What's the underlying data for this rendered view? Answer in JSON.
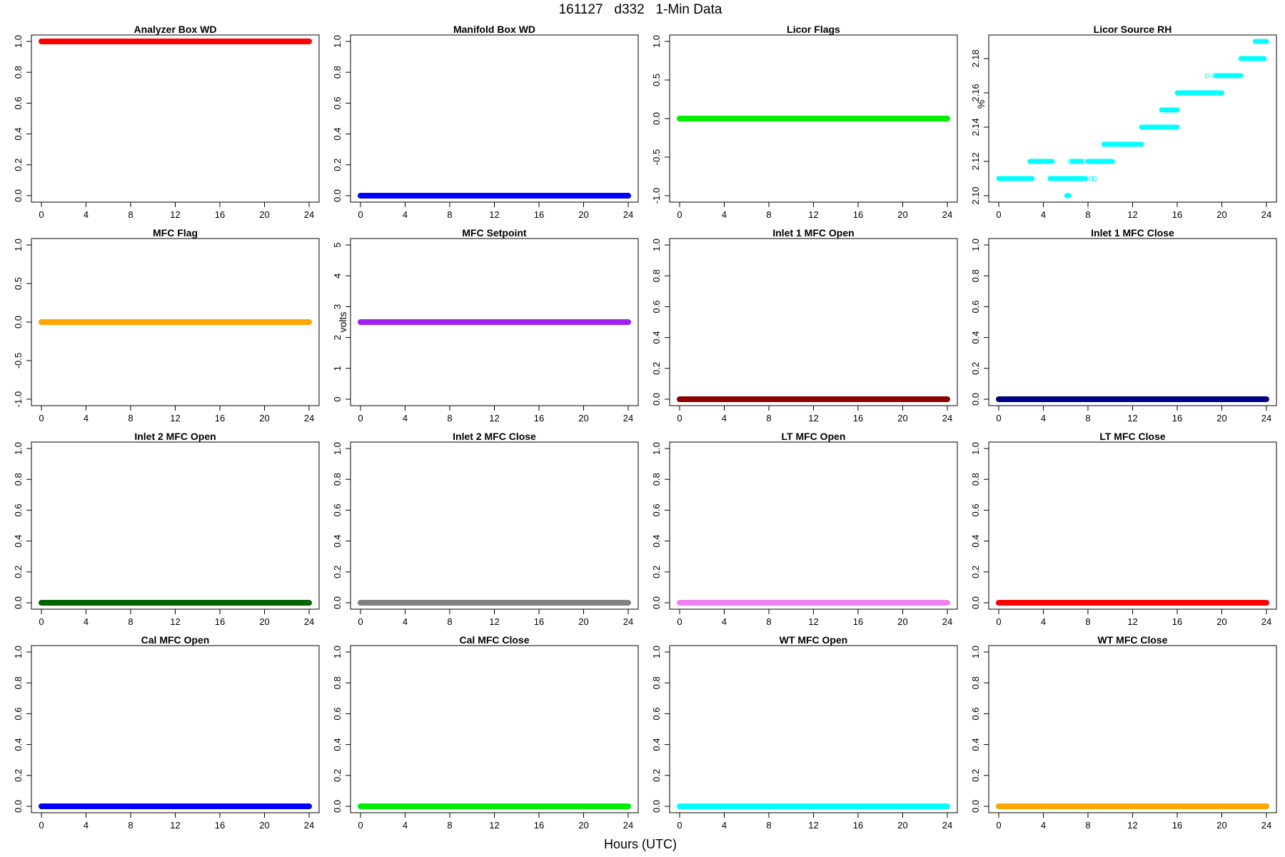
{
  "title": "161127   d332   1-Min Data",
  "xlabel": "Hours (UTC)",
  "chart_data": [
    {
      "type": "scatter",
      "title": "Analyzer Box WD",
      "ylabel": "",
      "color": "#ff0000",
      "xlim": [
        0,
        24
      ],
      "ylim": [
        0,
        1
      ],
      "yticks": [
        "0.0",
        "0.2",
        "0.4",
        "0.6",
        "0.8",
        "1.0"
      ],
      "xticks": [
        "0",
        "4",
        "8",
        "12",
        "16",
        "20",
        "24"
      ],
      "segments": [
        {
          "x": [
            0,
            24
          ],
          "y": 1.0
        }
      ],
      "points": []
    },
    {
      "type": "scatter",
      "title": "Manifold Box WD",
      "ylabel": "",
      "color": "#0000ff",
      "xlim": [
        0,
        24
      ],
      "ylim": [
        0,
        1
      ],
      "yticks": [
        "0.0",
        "0.2",
        "0.4",
        "0.6",
        "0.8",
        "1.0"
      ],
      "xticks": [
        "0",
        "4",
        "8",
        "12",
        "16",
        "20",
        "24"
      ],
      "segments": [
        {
          "x": [
            0,
            24
          ],
          "y": 0.0
        }
      ],
      "points": []
    },
    {
      "type": "scatter",
      "title": "Licor Flags",
      "ylabel": "",
      "color": "#00ee00",
      "xlim": [
        0,
        24
      ],
      "ylim": [
        -1,
        1
      ],
      "yticks": [
        "-1.0",
        "-0.5",
        "0.0",
        "0.5",
        "1.0"
      ],
      "xticks": [
        "0",
        "4",
        "8",
        "12",
        "16",
        "20",
        "24"
      ],
      "segments": [
        {
          "x": [
            0,
            24
          ],
          "y": 0.0
        }
      ],
      "points": []
    },
    {
      "type": "scatter",
      "title": "Licor Source RH",
      "ylabel": "%",
      "color": "#00ffff",
      "xlim": [
        0,
        24
      ],
      "ylim": [
        2.1,
        2.19
      ],
      "yticks": [
        "2.10",
        "2.12",
        "2.14",
        "2.16",
        "2.18"
      ],
      "xticks": [
        "0",
        "4",
        "8",
        "12",
        "16",
        "20",
        "24"
      ],
      "segments": [
        {
          "x": [
            0,
            3.0
          ],
          "y": 2.11
        },
        {
          "x": [
            2.8,
            4.8
          ],
          "y": 2.12
        },
        {
          "x": [
            4.6,
            7.8
          ],
          "y": 2.11
        },
        {
          "x": [
            6.1,
            6.3
          ],
          "y": 2.1
        },
        {
          "x": [
            6.6,
            7.4
          ],
          "y": 2.12
        },
        {
          "x": [
            8.0,
            10.2
          ],
          "y": 2.12
        },
        {
          "x": [
            9.5,
            12.8
          ],
          "y": 2.13
        },
        {
          "x": [
            12.8,
            16.0
          ],
          "y": 2.14
        },
        {
          "x": [
            14.6,
            16.0
          ],
          "y": 2.15
        },
        {
          "x": [
            16.0,
            20.0
          ],
          "y": 2.16
        },
        {
          "x": [
            19.5,
            21.7
          ],
          "y": 2.17
        },
        {
          "x": [
            21.7,
            23.8
          ],
          "y": 2.18
        },
        {
          "x": [
            23.0,
            24.0
          ],
          "y": 2.19
        }
      ],
      "points": [
        {
          "x": 6.4,
          "y": 2.12
        },
        {
          "x": 7.6,
          "y": 2.12
        },
        {
          "x": 8.3,
          "y": 2.11
        },
        {
          "x": 8.6,
          "y": 2.11
        },
        {
          "x": 9.4,
          "y": 2.13
        },
        {
          "x": 18.7,
          "y": 2.17
        },
        {
          "x": 19.3,
          "y": 2.17
        }
      ]
    },
    {
      "type": "scatter",
      "title": "MFC Flag",
      "ylabel": "",
      "color": "#ffa500",
      "xlim": [
        0,
        24
      ],
      "ylim": [
        -1,
        1
      ],
      "yticks": [
        "-1.0",
        "-0.5",
        "0.0",
        "0.5",
        "1.0"
      ],
      "xticks": [
        "0",
        "4",
        "8",
        "12",
        "16",
        "20",
        "24"
      ],
      "segments": [
        {
          "x": [
            0,
            24
          ],
          "y": 0.0
        }
      ],
      "points": []
    },
    {
      "type": "scatter",
      "title": "MFC Setpoint",
      "ylabel": "volts",
      "color": "#a020f0",
      "xlim": [
        0,
        24
      ],
      "ylim": [
        0,
        5
      ],
      "yticks": [
        "0",
        "1",
        "2",
        "3",
        "4",
        "5"
      ],
      "xticks": [
        "0",
        "4",
        "8",
        "12",
        "16",
        "20",
        "24"
      ],
      "segments": [
        {
          "x": [
            0,
            24
          ],
          "y": 2.5
        }
      ],
      "points": []
    },
    {
      "type": "scatter",
      "title": "Inlet 1 MFC Open",
      "ylabel": "",
      "color": "#8b0000",
      "xlim": [
        0,
        24
      ],
      "ylim": [
        0,
        1
      ],
      "yticks": [
        "0.0",
        "0.2",
        "0.4",
        "0.6",
        "0.8",
        "1.0"
      ],
      "xticks": [
        "0",
        "4",
        "8",
        "12",
        "16",
        "20",
        "24"
      ],
      "segments": [
        {
          "x": [
            0,
            24
          ],
          "y": 0.0
        }
      ],
      "points": []
    },
    {
      "type": "scatter",
      "title": "Inlet 1 MFC Close",
      "ylabel": "",
      "color": "#000080",
      "xlim": [
        0,
        24
      ],
      "ylim": [
        0,
        1
      ],
      "yticks": [
        "0.0",
        "0.2",
        "0.4",
        "0.6",
        "0.8",
        "1.0"
      ],
      "xticks": [
        "0",
        "4",
        "8",
        "12",
        "16",
        "20",
        "24"
      ],
      "segments": [
        {
          "x": [
            0,
            24
          ],
          "y": 0.0
        }
      ],
      "points": []
    },
    {
      "type": "scatter",
      "title": "Inlet 2 MFC Open",
      "ylabel": "",
      "color": "#006400",
      "xlim": [
        0,
        24
      ],
      "ylim": [
        0,
        1
      ],
      "yticks": [
        "0.0",
        "0.2",
        "0.4",
        "0.6",
        "0.8",
        "1.0"
      ],
      "xticks": [
        "0",
        "4",
        "8",
        "12",
        "16",
        "20",
        "24"
      ],
      "segments": [
        {
          "x": [
            0,
            24
          ],
          "y": 0.0
        }
      ],
      "points": []
    },
    {
      "type": "scatter",
      "title": "Inlet 2 MFC Close",
      "ylabel": "",
      "color": "#808080",
      "xlim": [
        0,
        24
      ],
      "ylim": [
        0,
        1
      ],
      "yticks": [
        "0.0",
        "0.2",
        "0.4",
        "0.6",
        "0.8",
        "1.0"
      ],
      "xticks": [
        "0",
        "4",
        "8",
        "12",
        "16",
        "20",
        "24"
      ],
      "segments": [
        {
          "x": [
            0,
            24
          ],
          "y": 0.0
        }
      ],
      "points": []
    },
    {
      "type": "scatter",
      "title": "LT MFC Open",
      "ylabel": "",
      "color": "#ee82ee",
      "xlim": [
        0,
        24
      ],
      "ylim": [
        0,
        1
      ],
      "yticks": [
        "0.0",
        "0.2",
        "0.4",
        "0.6",
        "0.8",
        "1.0"
      ],
      "xticks": [
        "0",
        "4",
        "8",
        "12",
        "16",
        "20",
        "24"
      ],
      "segments": [
        {
          "x": [
            0,
            24
          ],
          "y": 0.0
        }
      ],
      "points": []
    },
    {
      "type": "scatter",
      "title": "LT MFC Close",
      "ylabel": "",
      "color": "#ff0000",
      "xlim": [
        0,
        24
      ],
      "ylim": [
        0,
        1
      ],
      "yticks": [
        "0.0",
        "0.2",
        "0.4",
        "0.6",
        "0.8",
        "1.0"
      ],
      "xticks": [
        "0",
        "4",
        "8",
        "12",
        "16",
        "20",
        "24"
      ],
      "segments": [
        {
          "x": [
            0,
            24
          ],
          "y": 0.0
        }
      ],
      "points": []
    },
    {
      "type": "scatter",
      "title": "Cal MFC Open",
      "ylabel": "",
      "color": "#0000ff",
      "xlim": [
        0,
        24
      ],
      "ylim": [
        0,
        1
      ],
      "yticks": [
        "0.0",
        "0.2",
        "0.4",
        "0.6",
        "0.8",
        "1.0"
      ],
      "xticks": [
        "0",
        "4",
        "8",
        "12",
        "16",
        "20",
        "24"
      ],
      "segments": [
        {
          "x": [
            0,
            24
          ],
          "y": 0.0
        }
      ],
      "points": []
    },
    {
      "type": "scatter",
      "title": "Cal MFC Close",
      "ylabel": "",
      "color": "#00ee00",
      "xlim": [
        0,
        24
      ],
      "ylim": [
        0,
        1
      ],
      "yticks": [
        "0.0",
        "0.2",
        "0.4",
        "0.6",
        "0.8",
        "1.0"
      ],
      "xticks": [
        "0",
        "4",
        "8",
        "12",
        "16",
        "20",
        "24"
      ],
      "segments": [
        {
          "x": [
            0,
            24
          ],
          "y": 0.0
        }
      ],
      "points": []
    },
    {
      "type": "scatter",
      "title": "WT MFC Open",
      "ylabel": "",
      "color": "#00ffff",
      "xlim": [
        0,
        24
      ],
      "ylim": [
        0,
        1
      ],
      "yticks": [
        "0.0",
        "0.2",
        "0.4",
        "0.6",
        "0.8",
        "1.0"
      ],
      "xticks": [
        "0",
        "4",
        "8",
        "12",
        "16",
        "20",
        "24"
      ],
      "segments": [
        {
          "x": [
            0,
            24
          ],
          "y": 0.0
        }
      ],
      "points": []
    },
    {
      "type": "scatter",
      "title": "WT MFC Close",
      "ylabel": "",
      "color": "#ffa500",
      "xlim": [
        0,
        24
      ],
      "ylim": [
        0,
        1
      ],
      "yticks": [
        "0.0",
        "0.2",
        "0.4",
        "0.6",
        "0.8",
        "1.0"
      ],
      "xticks": [
        "0",
        "4",
        "8",
        "12",
        "16",
        "20",
        "24"
      ],
      "segments": [
        {
          "x": [
            0,
            24
          ],
          "y": 0.0
        }
      ],
      "points": []
    }
  ]
}
